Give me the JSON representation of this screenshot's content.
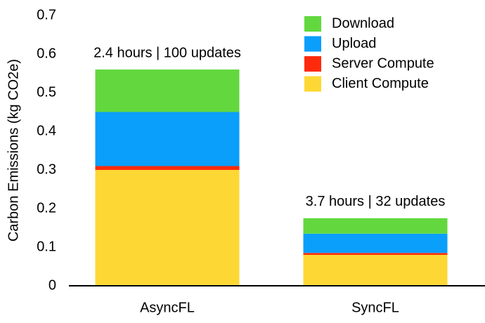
{
  "chart_data": {
    "type": "stacked_bar",
    "ylabel": "Carbon Emissions (kg CO2e)",
    "categories": [
      "AsyncFL",
      "SyncFL"
    ],
    "bar_labels": [
      "2.4 hours | 100 updates",
      "3.7 hours | 32 updates"
    ],
    "series": [
      {
        "name": "Client Compute",
        "color": "#fdd834",
        "values": [
          0.3,
          0.08
        ]
      },
      {
        "name": "Server Compute",
        "color": "#fd2b0c",
        "values": [
          0.01,
          0.005
        ]
      },
      {
        "name": "Upload",
        "color": "#0a9ffb",
        "values": [
          0.14,
          0.05
        ]
      },
      {
        "name": "Download",
        "color": "#62d83e",
        "values": [
          0.11,
          0.04
        ]
      }
    ],
    "ylim": [
      0,
      0.7
    ],
    "yticks": [
      0,
      0.1,
      0.2,
      0.3,
      0.4,
      0.5,
      0.6,
      0.7
    ],
    "legend": "upper-right"
  }
}
